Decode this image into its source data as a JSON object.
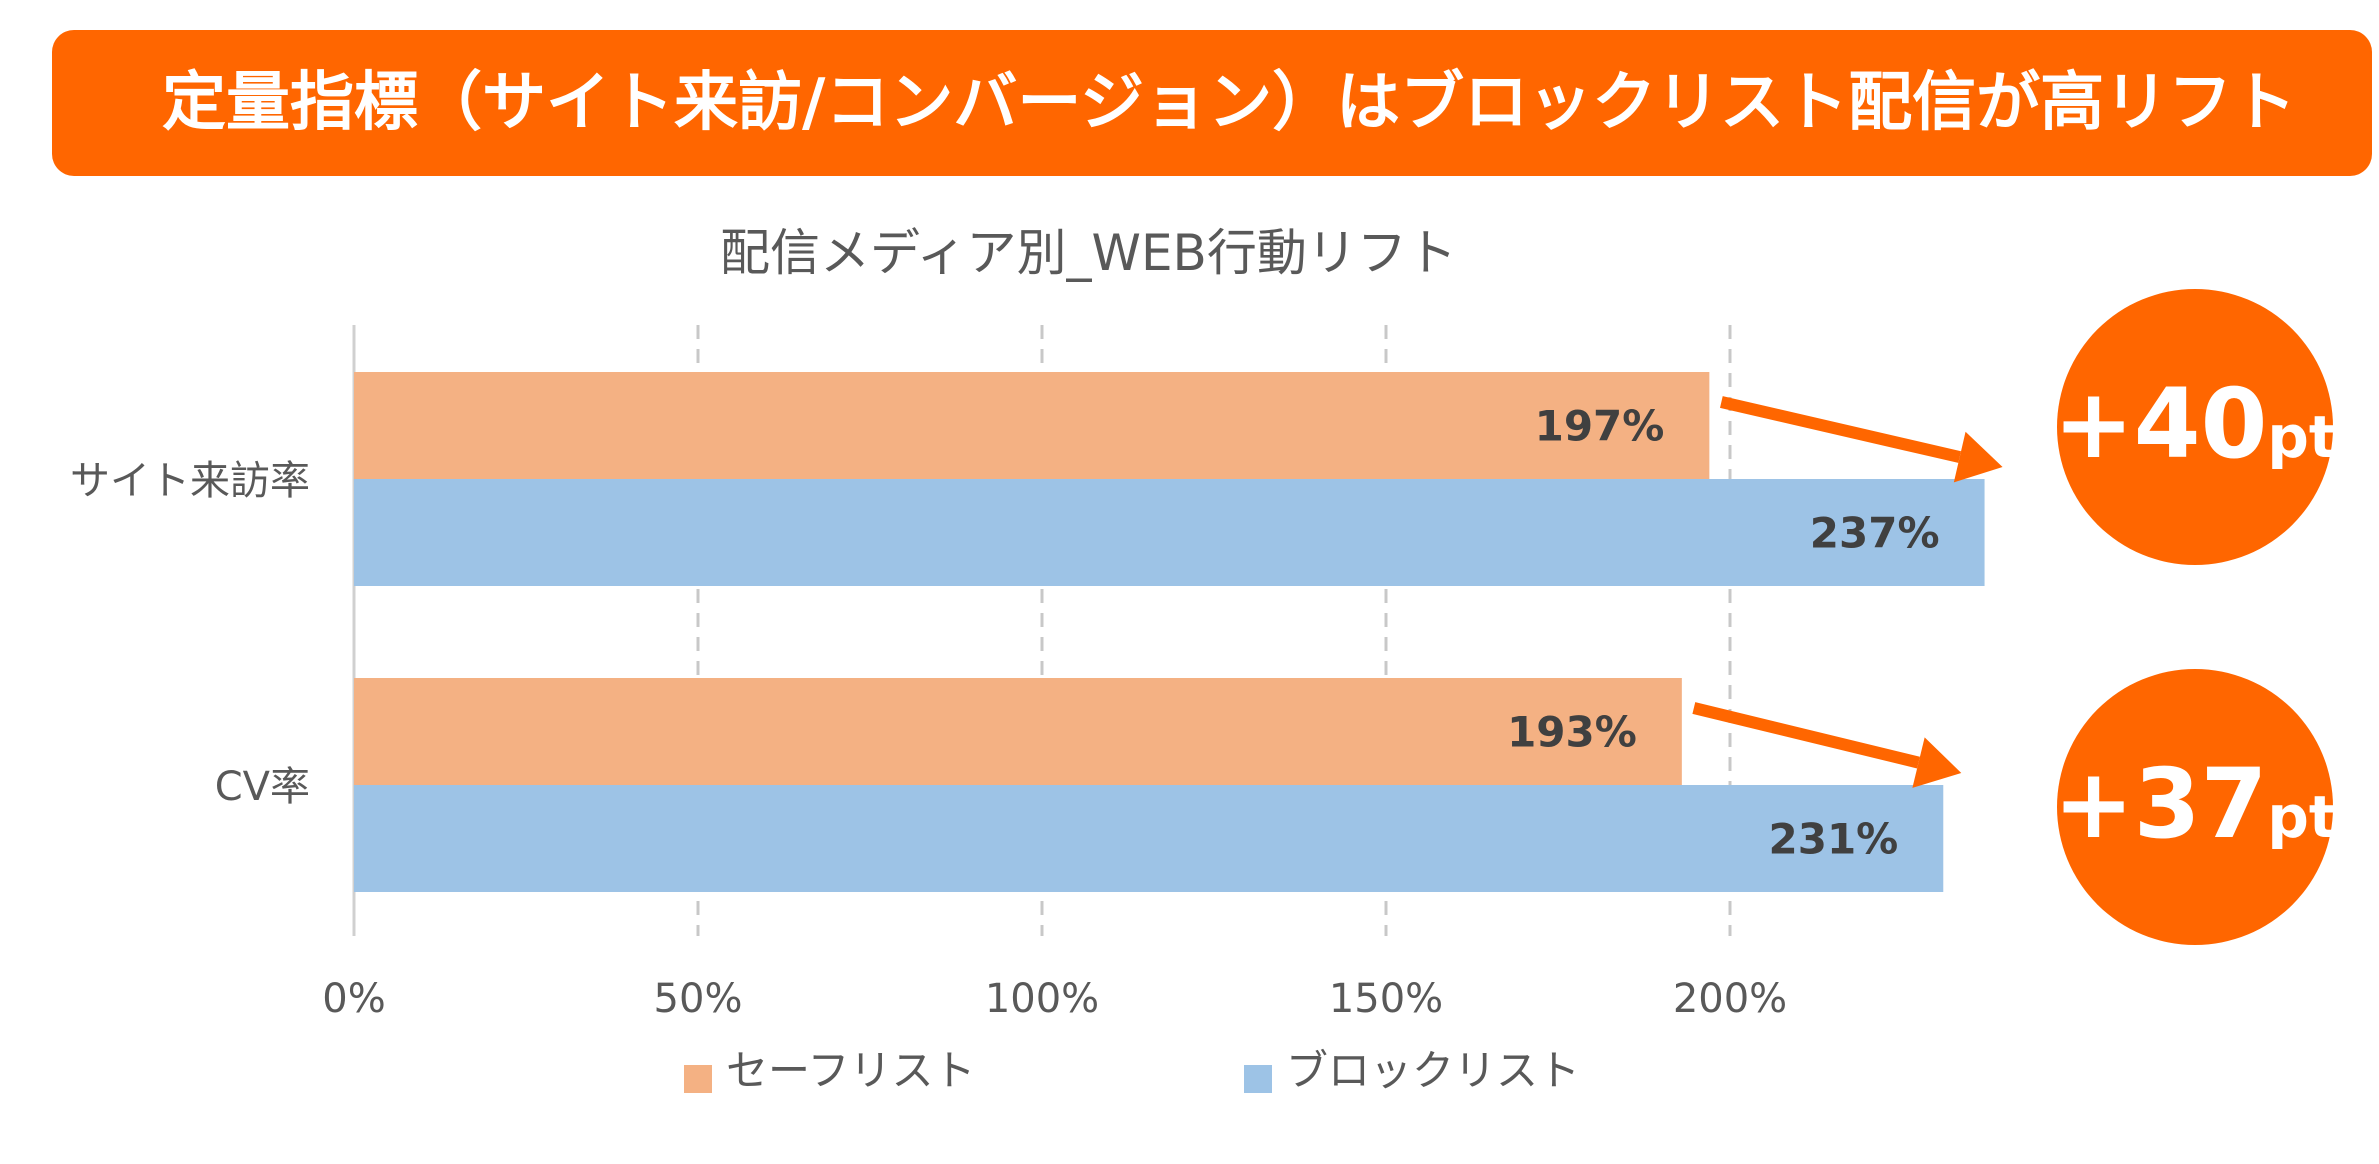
{
  "banner": {
    "title": "定量指標（サイト来訪/コンバージョン）はブロックリスト配信が高リフト"
  },
  "colors": {
    "accent": "#ff6600",
    "safelist": "#f4b183",
    "blocklist": "#9dc3e6",
    "grid": "#c8c8c8",
    "text": "#595959",
    "label_text": "#404040"
  },
  "chart_data": {
    "type": "bar",
    "orientation": "horizontal",
    "title": "配信メディア別_WEB行動リフト",
    "categories": [
      "サイト来訪率",
      "CV率"
    ],
    "series": [
      {
        "name": "セーフリスト",
        "values": [
          197,
          193
        ],
        "labels": [
          "197%",
          "193%"
        ]
      },
      {
        "name": "ブロックリスト",
        "values": [
          237,
          231
        ],
        "labels": [
          "237%",
          "231%"
        ]
      }
    ],
    "xlim": [
      0,
      250
    ],
    "xticks": [
      0,
      50,
      100,
      150,
      200
    ],
    "xtick_labels": [
      "0%",
      "50%",
      "100%",
      "150%",
      "200%"
    ],
    "grid": true,
    "legend_position": "bottom",
    "annotations": [
      {
        "category": "サイト来訪率",
        "value": "+40",
        "unit": "pt"
      },
      {
        "category": "CV率",
        "value": "+37",
        "unit": "pt"
      }
    ]
  }
}
